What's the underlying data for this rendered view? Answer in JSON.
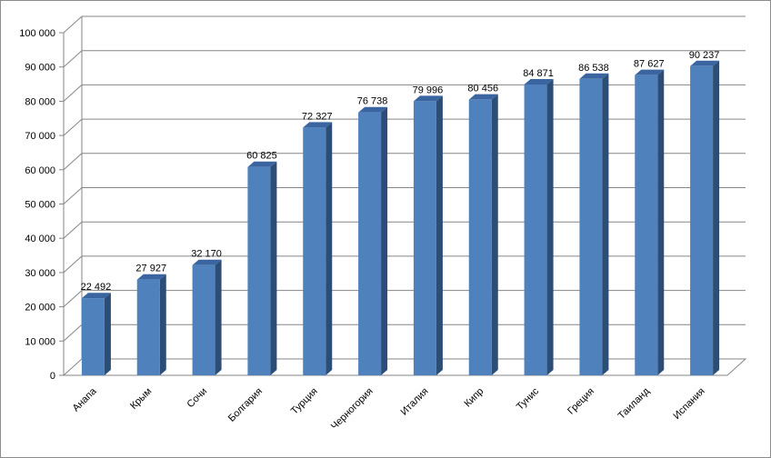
{
  "chart_data": {
    "type": "bar",
    "title": "",
    "xlabel": "",
    "ylabel": "",
    "categories": [
      "Анапа",
      "Крым",
      "Сочи",
      "Болгария",
      "Турция",
      "Черногория",
      "Италия",
      "Кипр",
      "Тунис",
      "Греция",
      "Таиланд",
      "Испания"
    ],
    "values": [
      22492,
      27927,
      32170,
      60825,
      72327,
      76738,
      79996,
      80456,
      84871,
      86538,
      87627,
      90237
    ],
    "data_labels": [
      "22 492",
      "27 927",
      "32 170",
      "60 825",
      "72 327",
      "76 738",
      "79 996",
      "80 456",
      "84 871",
      "86 538",
      "87 627",
      "90 237"
    ],
    "ylim": [
      0,
      100000
    ],
    "yticks": [
      0,
      10000,
      20000,
      30000,
      40000,
      50000,
      60000,
      70000,
      80000,
      90000,
      100000
    ],
    "ytick_labels": [
      "0",
      "10 000",
      "20 000",
      "30 000",
      "40 000",
      "50 000",
      "60 000",
      "70 000",
      "80 000",
      "90 000",
      "100 000"
    ],
    "grid": true,
    "legend": "none",
    "colors": {
      "bar_front": "#4f81bd",
      "bar_side": "#2c4d75",
      "bar_top": "#3b65a0",
      "grid": "#868686",
      "axis": "#868686"
    }
  }
}
